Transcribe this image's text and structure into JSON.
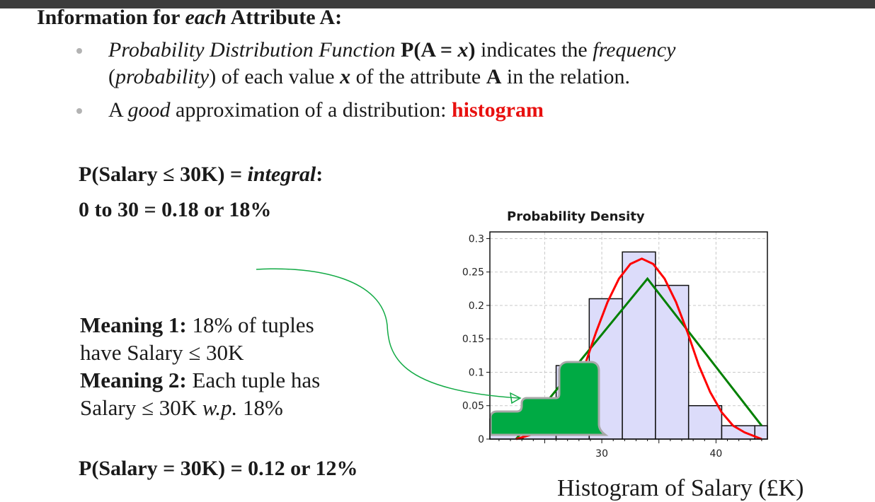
{
  "heading": {
    "prefix": "Information for ",
    "emph": "each",
    "suffix": " Attribute A:"
  },
  "bullets": [
    {
      "b1_italic": "Probability Distribution Function ",
      "b1_bold1": "P(A = ",
      "b1_bolditalic": "x",
      "b1_bold2": ")",
      "b1_text1": " indicates the ",
      "b1_italic2": "frequency",
      "b1_line2_open": "(",
      "b1_italic3": "probability",
      "b1_text2": ") of each value ",
      "b1_bolditalic2": "x",
      "b1_text3": " of the attribute ",
      "b1_bold3": "A",
      "b1_text4": " in the relation."
    },
    {
      "b2_text1": "A ",
      "b2_italic": "good",
      "b2_text2": " approximation of a distribution: ",
      "b2_red": "histogram"
    }
  ],
  "formula1": {
    "prefix": "P(Salary ≤ 30K) = ",
    "italic": "integral",
    "suffix": ":"
  },
  "formula2": "0 to 30 = 0.18 or 18%",
  "meaning": {
    "m1_label": "Meaning 1:",
    "m1_text": " 18% of tuples",
    "m1_line2": "have Salary ≤ 30K",
    "m2_label": "Meaning 2:",
    "m2_text": " Each tuple has",
    "m2_line2_prefix": "Salary ≤ 30K ",
    "m2_italic": "w.p.",
    "m2_suffix": " 18%"
  },
  "formula3": "P(Salary = 30K) = 0.12 or 12%",
  "caption": "Histogram of Salary (£K)",
  "colors": {
    "bar_fill": "#dcdcfa",
    "normal_curve": "#ff0000",
    "triangle_line": "#008000",
    "shaded_area": "#00aa44",
    "arrow": "#11aa44",
    "emphasis_red": "#e8100f"
  },
  "chart_data": {
    "type": "bar",
    "title": "Probability Density",
    "xlabel": "",
    "ylabel": "",
    "xlim": [
      20.2,
      44.5
    ],
    "ylim": [
      0,
      0.31
    ],
    "xticks": [
      30,
      40
    ],
    "yticks": [
      0,
      0.05,
      0.1,
      0.15,
      0.2,
      0.25,
      0.3
    ],
    "ytick_labels": [
      "0",
      "0.05",
      "0.1",
      "0.15",
      "0.2",
      "0.25",
      "0.3"
    ],
    "grid": true,
    "bins": [
      {
        "x0": 20.2,
        "x1": 23.1,
        "value": 0.03
      },
      {
        "x0": 23.1,
        "x1": 26.0,
        "value": 0.06
      },
      {
        "x0": 26.0,
        "x1": 28.9,
        "value": 0.11
      },
      {
        "x0": 28.9,
        "x1": 31.8,
        "value": 0.21
      },
      {
        "x0": 31.8,
        "x1": 34.7,
        "value": 0.28
      },
      {
        "x0": 34.7,
        "x1": 37.6,
        "value": 0.23
      },
      {
        "x0": 37.6,
        "x1": 40.5,
        "value": 0.05
      },
      {
        "x0": 40.5,
        "x1": 43.4,
        "value": 0.02
      },
      {
        "x0": 43.4,
        "x1": 44.5,
        "value": 0.02
      }
    ],
    "series": [
      {
        "type": "line",
        "x": [
          22.5,
          24.5,
          26.5,
          27.5,
          28.5,
          29.5,
          30.5,
          31.5,
          32.5,
          33.5,
          34.5,
          35.5,
          36.5,
          37.5,
          38.5,
          39.5,
          40.5,
          41.5,
          42.5,
          44.0
        ],
        "y": [
          0.0,
          0.01,
          0.04,
          0.07,
          0.11,
          0.16,
          0.205,
          0.24,
          0.262,
          0.27,
          0.262,
          0.24,
          0.205,
          0.16,
          0.11,
          0.07,
          0.04,
          0.02,
          0.01,
          0.0
        ]
      },
      {
        "type": "line",
        "x": [
          22.5,
          34.0,
          44.0
        ],
        "y": [
          0.0,
          0.24,
          0.02
        ]
      }
    ],
    "shaded_region": {
      "x0": 20.2,
      "x1": 30.0
    }
  }
}
